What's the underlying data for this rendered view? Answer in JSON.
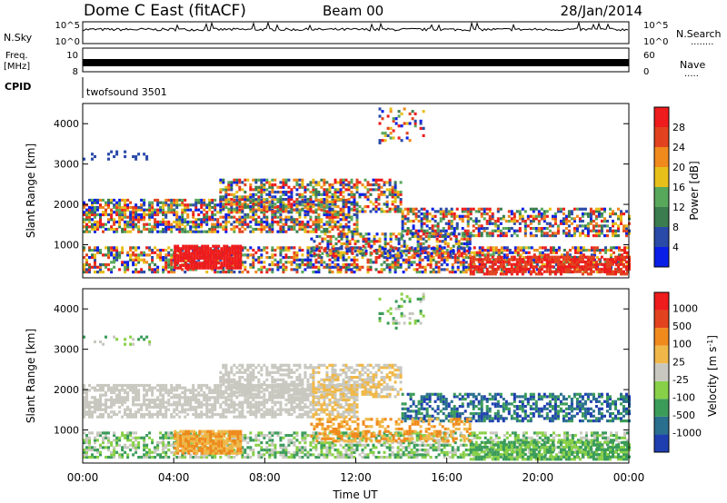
{
  "header": {
    "station": "Dome C East (fitACF)",
    "beam": "Beam 00",
    "date": "28/Jan/2014"
  },
  "left_labels": {
    "nsky": "N.Sky",
    "freq_line1": "Freq.",
    "freq_line2": "[MHz]",
    "cpid": "CPID"
  },
  "right_labels": {
    "nsearch": "N.Search",
    "nsearch_dots": "........",
    "nave": "Nave",
    "nave_dots": "....."
  },
  "cpid_text": "twofsound 3501",
  "chart_data": [
    {
      "type": "line",
      "name": "noise",
      "left_axis_ticks": [
        "10^5",
        "10^0"
      ],
      "right_axis_ticks": [
        "10^5",
        "10^0"
      ],
      "left_label": "N.Sky",
      "right_label": "N.Search"
    },
    {
      "type": "line",
      "name": "frequency",
      "left_axis_ticks": [
        "10",
        "8"
      ],
      "right_axis_ticks": [
        "60",
        "0"
      ],
      "left_label": "Freq. [MHz]",
      "right_label": "Nave"
    },
    {
      "type": "heatmap",
      "name": "power",
      "ylabel": "Slant Range [km]",
      "yticks": [
        1000,
        2000,
        3000,
        4000
      ],
      "ylim": [
        180,
        4500
      ],
      "xlim_hours": [
        0,
        24
      ],
      "colorbar_label": "Power [dB]",
      "colorbar_ticks": [
        "28",
        "24",
        "20",
        "16",
        "12",
        "8",
        "4"
      ],
      "colors": [
        "#0a1fe6",
        "#2a4aa8",
        "#3b7d4e",
        "#58a85c",
        "#e8c01a",
        "#f08a1c",
        "#e2431e",
        "#ee1c1c"
      ]
    },
    {
      "type": "heatmap",
      "name": "velocity",
      "ylabel": "Slant Range [km]",
      "yticks": [
        1000,
        2000,
        3000,
        4000
      ],
      "ylim": [
        180,
        4500
      ],
      "xlim_hours": [
        0,
        24
      ],
      "colorbar_label": "Velocity [m s^-1]",
      "colorbar_ticks": [
        "1000",
        "500",
        "100",
        "25",
        "-25",
        "-100",
        "-500",
        "-1000"
      ],
      "colors": [
        "#1f3fb0",
        "#2a6f8e",
        "#3b9c5a",
        "#88d048",
        "#c8c8c0",
        "#f0b848",
        "#f08a1c",
        "#e2431e",
        "#ee1c1c"
      ],
      "xlabel": "Time UT",
      "xticks": [
        "00:00",
        "04:00",
        "08:00",
        "12:00",
        "16:00",
        "20:00",
        "00:00"
      ]
    }
  ]
}
